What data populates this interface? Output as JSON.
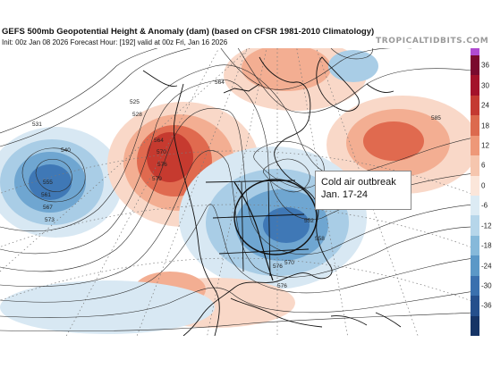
{
  "header": {
    "title": "GEFS 500mb Geopotential Height & Anomaly (dam) (based on CFSR 1981-2010 Climatology)",
    "subtitle": "Init: 00z Jan 08 2026   Forecast Hour: [192]   valid at 00z Fri, Jan 16 2026",
    "brand": "TROPICALTIDBITS.COM"
  },
  "annotation": {
    "line1": "Cold air outbreak",
    "line2": "Jan. 17-24"
  },
  "colorbar": {
    "ticks": [
      "36",
      "30",
      "24",
      "18",
      "12",
      "6",
      "0",
      "-6",
      "-12",
      "-18",
      "-24",
      "-30",
      "-36"
    ],
    "colors": [
      "#7a0a2e",
      "#a3122a",
      "#c43a32",
      "#dc6a4e",
      "#ee9878",
      "#f6c6ae",
      "#fbe6da",
      "#dcebf4",
      "#b6d6ea",
      "#86b9da",
      "#5b98c7",
      "#3a70ae",
      "#254f8c",
      "#163466"
    ],
    "top_swatch": "#b04bd0"
  },
  "contour_labels": {
    "l1": "531",
    "l2": "540",
    "l3": "555",
    "l4": "561",
    "l5": "567",
    "l6": "573",
    "l7": "564",
    "l8": "570",
    "l9": "576",
    "l10": "579",
    "l11": "525",
    "l12": "528",
    "l13": "585",
    "l14": "576",
    "l15": "570",
    "l16": "576",
    "l17": "558",
    "l18": "552",
    "l19": "564",
    "l20": "588"
  },
  "map_colors": {
    "warm_strong": "#c63a2f",
    "warm_med": "#e06a4f",
    "warm_light": "#f3ae92",
    "warm_pale": "#f9d8c8",
    "cool_pale": "#d8e8f3",
    "cool_light": "#a9cde6",
    "cool_med": "#6fa6d1",
    "cool_strong": "#3f78b6"
  }
}
